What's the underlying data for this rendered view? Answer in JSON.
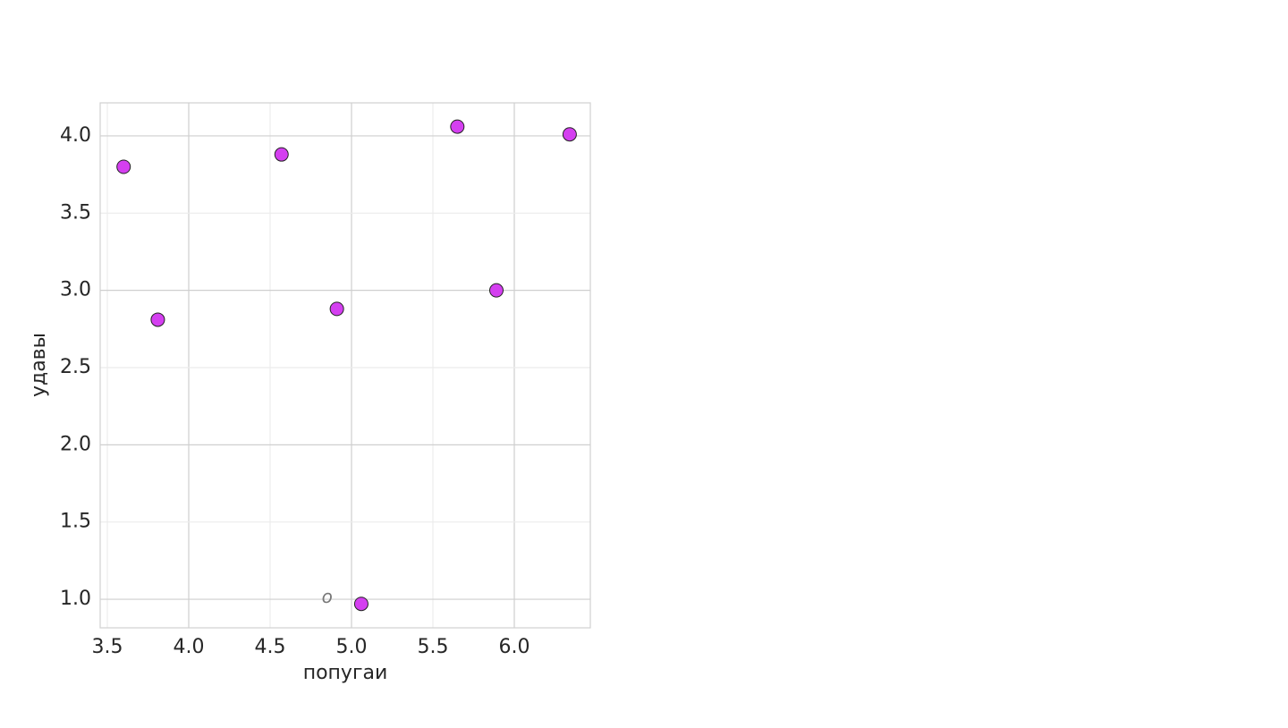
{
  "chart_data": {
    "type": "scatter",
    "x_label": "попугаи",
    "y_label": "удавы",
    "series": [
      {
        "color": "#d43ff0",
        "x": [
          3.6,
          3.81,
          4.57,
          4.91,
          5.06,
          5.65,
          5.89,
          6.34
        ],
        "values": [
          3.8,
          2.81,
          3.88,
          2.88,
          0.97,
          4.06,
          3.0,
          4.01
        ]
      }
    ],
    "annotations": [
      {
        "text": "o",
        "x": 4.85,
        "y": 1.01
      }
    ],
    "xlim": [
      3.456,
      6.467
    ],
    "ylim": [
      0.815,
      4.214
    ],
    "xticks": [
      3.5,
      {
        "value": 4,
        "label": "4.0"
      },
      4.5,
      {
        "value": 5,
        "label": "5.0"
      },
      5.5,
      {
        "value": 6,
        "label": "6.0"
      }
    ],
    "yticks": [
      {
        "value": 1,
        "label": "1.0"
      },
      1.5,
      {
        "value": 2,
        "label": "2.0"
      },
      2.5,
      {
        "value": 3,
        "label": "3.0"
      },
      3.5,
      {
        "value": 4,
        "label": "4.0"
      }
    ],
    "grid": true
  }
}
